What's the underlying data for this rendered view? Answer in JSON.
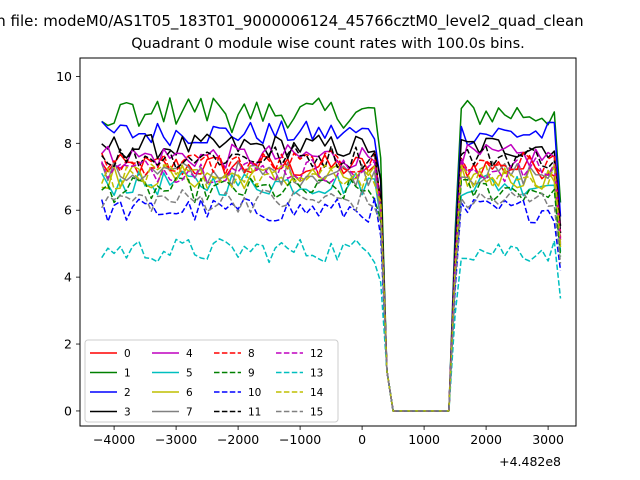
{
  "figure": {
    "suptitle": "n file: modeM0/AS1T05_183T01_9000006124_45766cztM0_level2_quad_clean",
    "title": "Quadrant 0 module wise count rates with 100.0s bins.",
    "offset_label": "+4.482e8"
  },
  "chart_data": {
    "type": "line",
    "title": "Quadrant 0 module wise count rates with 100.0s bins.",
    "xlabel": "",
    "ylabel": "",
    "x_offset": "+4.482e8",
    "xlim": [
      -4550,
      3450
    ],
    "ylim": [
      -0.45,
      10.55
    ],
    "xticks": [
      -4000,
      -3000,
      -2000,
      -1000,
      0,
      1000,
      2000,
      3000
    ],
    "xtick_labels": [
      "−4000",
      "−3000",
      "−2000",
      "−1000",
      "0",
      "1000",
      "2000",
      "3000"
    ],
    "yticks": [
      0,
      2,
      4,
      6,
      8,
      10
    ],
    "ytick_labels": [
      "0",
      "2",
      "4",
      "6",
      "8",
      "10"
    ],
    "grid": false,
    "legend": {
      "placement": "lower-left",
      "columns": 4
    },
    "shape": {
      "x_start": -4200,
      "x_step": 100,
      "first_drop_x": 300,
      "gap_start_x": 500,
      "gap_end_x": 1400,
      "first_rise_x": 1500,
      "x_end": 3200
    },
    "series": [
      {
        "name": "0",
        "color": "#ff0000",
        "dash": "solid",
        "level": 7.3
      },
      {
        "name": "1",
        "color": "#008000",
        "dash": "solid",
        "level": 8.9
      },
      {
        "name": "2",
        "color": "#0000ff",
        "dash": "solid",
        "level": 8.3
      },
      {
        "name": "3",
        "color": "#000000",
        "dash": "solid",
        "level": 7.9
      },
      {
        "name": "4",
        "color": "#bf00bf",
        "dash": "solid",
        "level": 7.6
      },
      {
        "name": "5",
        "color": "#00bfbf",
        "dash": "solid",
        "level": 6.8
      },
      {
        "name": "6",
        "color": "#bfbf00",
        "dash": "solid",
        "level": 7.0
      },
      {
        "name": "7",
        "color": "#808080",
        "dash": "solid",
        "level": 7.1
      },
      {
        "name": "8",
        "color": "#ff0000",
        "dash": "dashed",
        "level": 7.4
      },
      {
        "name": "9",
        "color": "#008000",
        "dash": "dashed",
        "level": 6.6
      },
      {
        "name": "10",
        "color": "#0000ff",
        "dash": "dashed",
        "level": 6.0
      },
      {
        "name": "11",
        "color": "#000000",
        "dash": "dashed",
        "level": 7.6
      },
      {
        "name": "12",
        "color": "#bf00bf",
        "dash": "dashed",
        "level": 7.2
      },
      {
        "name": "13",
        "color": "#00bfbf",
        "dash": "dashed",
        "level": 4.8
      },
      {
        "name": "14",
        "color": "#bfbf00",
        "dash": "dashed",
        "level": 7.0
      },
      {
        "name": "15",
        "color": "#808080",
        "dash": "dashed",
        "level": 6.3
      }
    ]
  }
}
